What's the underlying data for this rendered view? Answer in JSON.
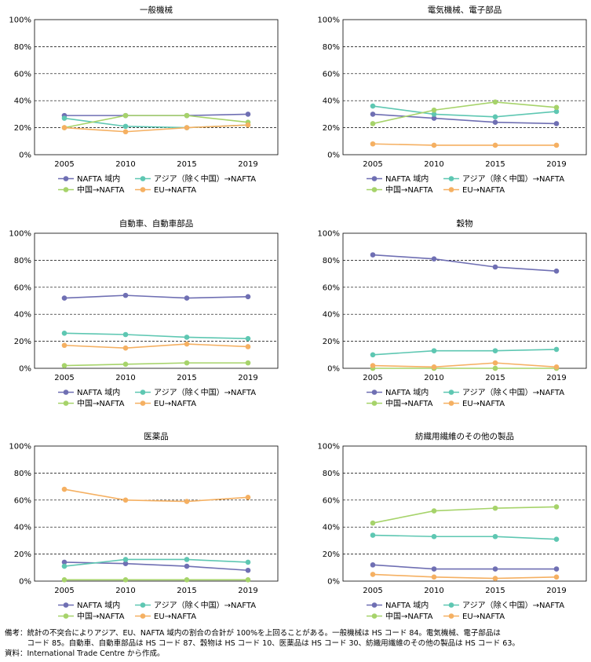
{
  "colors": {
    "NAFTA": "#6f6fb3",
    "ASIA": "#5ec7b2",
    "CHINA": "#a6d36a",
    "EU": "#f5b062"
  },
  "legend": {
    "nafta": "NAFTA 域内",
    "asia": "アジア（除く中国）→NAFTA",
    "china": "中国→NAFTA",
    "eu": "EU→NAFTA"
  },
  "chart_data": [
    {
      "type": "line",
      "title": "一般機械",
      "categories": [
        "2005",
        "2010",
        "2015",
        "2019"
      ],
      "ylim": [
        0,
        100
      ],
      "yticks": [
        "0%",
        "20%",
        "40%",
        "60%",
        "80%",
        "100%"
      ],
      "grid": "dashed horizontal",
      "legend_position": "bottom",
      "series": [
        {
          "name": "NAFTA 域内",
          "values": [
            29,
            29,
            29,
            30
          ]
        },
        {
          "name": "アジア（除く中国）→NAFTA",
          "values": [
            27,
            21,
            20,
            22
          ]
        },
        {
          "name": "中国→NAFTA",
          "values": [
            20,
            29,
            29,
            24
          ]
        },
        {
          "name": "EU→NAFTA",
          "values": [
            20,
            17,
            20,
            22
          ]
        }
      ]
    },
    {
      "type": "line",
      "title": "電気機械、電子部品",
      "categories": [
        "2005",
        "2010",
        "2015",
        "2019"
      ],
      "ylim": [
        0,
        100
      ],
      "yticks": [
        "0%",
        "20%",
        "40%",
        "60%",
        "80%",
        "100%"
      ],
      "grid": "dashed horizontal",
      "legend_position": "bottom",
      "series": [
        {
          "name": "NAFTA 域内",
          "values": [
            30,
            27,
            24,
            23
          ]
        },
        {
          "name": "アジア（除く中国）→NAFTA",
          "values": [
            36,
            30,
            28,
            32
          ]
        },
        {
          "name": "中国→NAFTA",
          "values": [
            23,
            33,
            39,
            35
          ]
        },
        {
          "name": "EU→NAFTA",
          "values": [
            8,
            7,
            7,
            7
          ]
        }
      ]
    },
    {
      "type": "line",
      "title": "自動車、自動車部品",
      "categories": [
        "2005",
        "2010",
        "2015",
        "2019"
      ],
      "ylim": [
        0,
        100
      ],
      "yticks": [
        "0%",
        "20%",
        "40%",
        "60%",
        "80%",
        "100%"
      ],
      "grid": "dashed horizontal",
      "legend_position": "bottom",
      "series": [
        {
          "name": "NAFTA 域内",
          "values": [
            52,
            54,
            52,
            53
          ]
        },
        {
          "name": "アジア（除く中国）→NAFTA",
          "values": [
            26,
            25,
            23,
            22
          ]
        },
        {
          "name": "中国→NAFTA",
          "values": [
            2,
            3,
            4,
            4
          ]
        },
        {
          "name": "EU→NAFTA",
          "values": [
            17,
            15,
            18,
            16
          ]
        }
      ]
    },
    {
      "type": "line",
      "title": "穀物",
      "categories": [
        "2005",
        "2010",
        "2015",
        "2019"
      ],
      "ylim": [
        0,
        100
      ],
      "yticks": [
        "0%",
        "20%",
        "40%",
        "60%",
        "80%",
        "100%"
      ],
      "grid": "dashed horizontal",
      "legend_position": "bottom",
      "series": [
        {
          "name": "NAFTA 域内",
          "values": [
            84,
            81,
            75,
            72
          ]
        },
        {
          "name": "アジア（除く中国）→NAFTA",
          "values": [
            10,
            13,
            13,
            14
          ]
        },
        {
          "name": "中国→NAFTA",
          "values": [
            0,
            0,
            0,
            0
          ]
        },
        {
          "name": "EU→NAFTA",
          "values": [
            2,
            1,
            4,
            1
          ]
        }
      ]
    },
    {
      "type": "line",
      "title": "医薬品",
      "categories": [
        "2005",
        "2010",
        "2015",
        "2019"
      ],
      "ylim": [
        0,
        100
      ],
      "yticks": [
        "0%",
        "20%",
        "40%",
        "60%",
        "80%",
        "100%"
      ],
      "grid": "dashed horizontal",
      "legend_position": "bottom",
      "series": [
        {
          "name": "NAFTA 域内",
          "values": [
            14,
            13,
            11,
            8
          ]
        },
        {
          "name": "アジア（除く中国）→NAFTA",
          "values": [
            11,
            16,
            16,
            14
          ]
        },
        {
          "name": "中国→NAFTA",
          "values": [
            1,
            1,
            1,
            1
          ]
        },
        {
          "name": "EU→NAFTA",
          "values": [
            68,
            60,
            59,
            62
          ]
        }
      ]
    },
    {
      "type": "line",
      "title": "紡織用繊維のその他の製品",
      "categories": [
        "2005",
        "2010",
        "2015",
        "2019"
      ],
      "ylim": [
        0,
        100
      ],
      "yticks": [
        "0%",
        "20%",
        "40%",
        "60%",
        "80%",
        "100%"
      ],
      "grid": "dashed horizontal",
      "legend_position": "bottom",
      "series": [
        {
          "name": "NAFTA 域内",
          "values": [
            12,
            9,
            9,
            9
          ]
        },
        {
          "name": "アジア（除く中国）→NAFTA",
          "values": [
            34,
            33,
            33,
            31
          ]
        },
        {
          "name": "中国→NAFTA",
          "values": [
            43,
            52,
            54,
            55
          ]
        },
        {
          "name": "EU→NAFTA",
          "values": [
            5,
            3,
            2,
            3
          ]
        }
      ]
    }
  ],
  "notes": {
    "line1": "備考：統計の不突合によりアジア、EU、NAFTA 域内の割合の合計が 100%を上回ることがある。一般機械は HS コード 84。電気機械、電子部品は",
    "line2": "　　　コード 85。自動車、自動車部品は HS コード 87、穀物は HS コード 10、医薬品は HS コード 30、紡織用繊維のその他の製品は HS コード 63。",
    "line3": "資料：International Trade Centre から作成。"
  }
}
